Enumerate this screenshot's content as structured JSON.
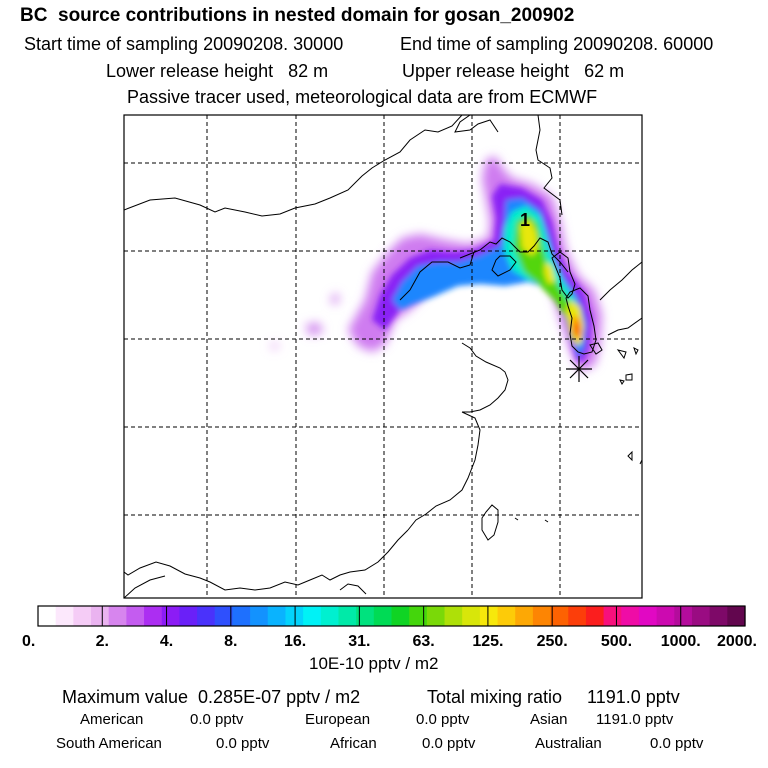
{
  "header": {
    "title": "BC  source contributions in nested domain for gosan_200902",
    "start_label": "Start time of sampling 20090208. 30000",
    "end_label": "End time of sampling 20090208. 60000",
    "lower_label": "Lower release height   82 m",
    "upper_label": "Upper release height   62 m",
    "tracer_label": "Passive tracer used, meteorological data are from ECMWF"
  },
  "map": {
    "plume_marker": "1",
    "receptor_marker_icon": "asterisk-receptor-icon"
  },
  "colorbar": {
    "tick_labels": [
      "0.",
      "2.",
      "4.",
      "8.",
      "16.",
      "31.",
      "63.",
      "125.",
      "250.",
      "500.",
      "1000.",
      "2000."
    ],
    "colors": [
      "#ffffff",
      "#fce8fc",
      "#f5ccf6",
      "#eab3f0",
      "#d785ee",
      "#c45cf0",
      "#ac2ef2",
      "#8c1cf5",
      "#6a20f8",
      "#4a32fb",
      "#2f50fd",
      "#1e70fe",
      "#1392fe",
      "#0ab3fe",
      "#04d3fc",
      "#00f2f6",
      "#00f0d0",
      "#00eaa8",
      "#00e27e",
      "#00db55",
      "#10d424",
      "#44d60c",
      "#7ad908",
      "#aee008",
      "#d8e60a",
      "#f7e80b",
      "#fdcb08",
      "#fda805",
      "#fd8503",
      "#fd6202",
      "#fc3e0a",
      "#fb1e1e",
      "#f7107c",
      "#ef0ca6",
      "#e108c3",
      "#cc0ab0",
      "#b40c9c",
      "#9a0c82",
      "#7e0968",
      "#62064e"
    ],
    "units": "10E-10 pptv / m2"
  },
  "stats": {
    "max_value": "Maximum value  0.285E-07 pptv / m2",
    "total_mixing": "Total mixing ratio     1191.0 pptv",
    "american": "American",
    "american_val": "0.0 pptv",
    "european": "European",
    "european_val": "0.0 pptv",
    "asian": "Asian",
    "asian_val": "1191.0 pptv",
    "south_american": "South American",
    "south_american_val": "0.0 pptv",
    "african": "African",
    "african_val": "0.0 pptv",
    "australian": "Australian",
    "australian_val": "0.0 pptv"
  }
}
